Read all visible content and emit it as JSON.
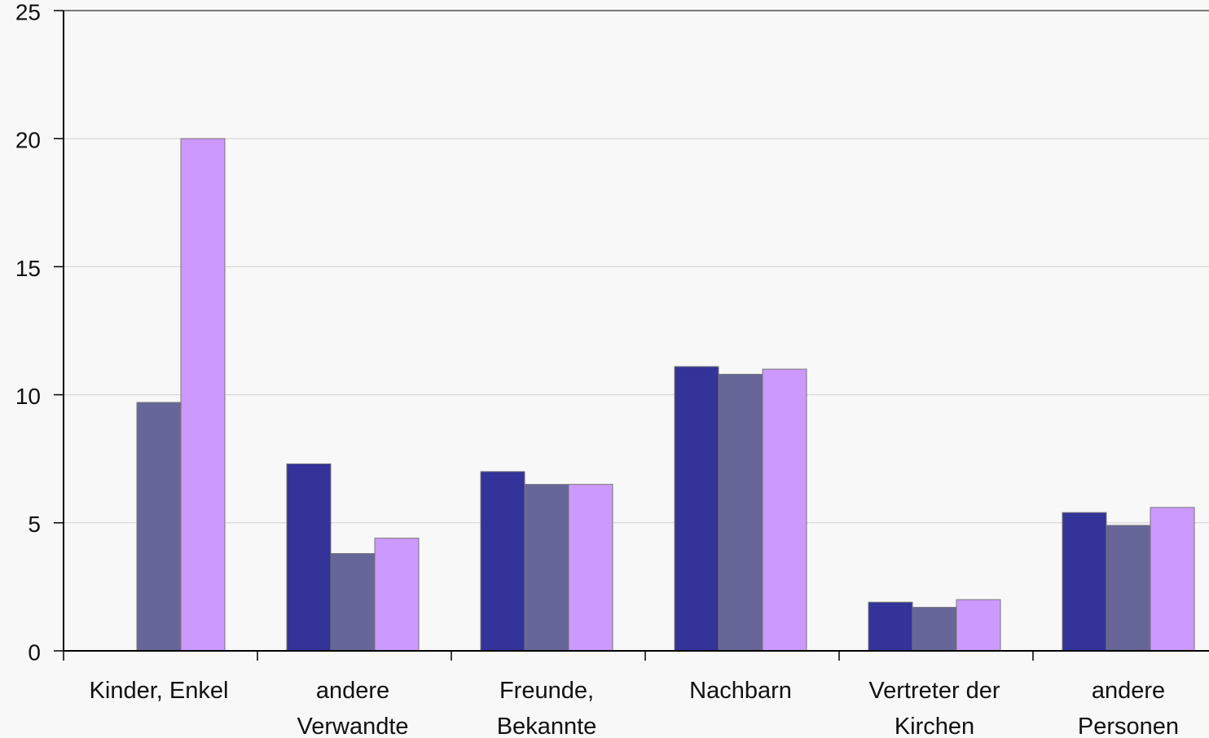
{
  "chart_data": {
    "type": "bar",
    "categories": [
      "Kinder, Enkel",
      "andere\nVerwandte",
      "Freunde,\nBekannte",
      "Nachbarn",
      "Vertreter der\nKirchen",
      "andere\nPersonen"
    ],
    "series": [
      {
        "color": "#333399",
        "values": [
          null,
          7.3,
          7.0,
          11.1,
          1.9,
          5.4
        ]
      },
      {
        "color": "#666699",
        "values": [
          9.7,
          3.8,
          6.5,
          10.8,
          1.7,
          4.9
        ]
      },
      {
        "color": "#cc99ff",
        "values": [
          20,
          4.4,
          6.5,
          11.0,
          2.0,
          5.6
        ]
      }
    ],
    "ylim": [
      0,
      25
    ],
    "yticks": [
      0,
      5,
      10,
      15,
      20,
      25
    ],
    "grid": true
  }
}
